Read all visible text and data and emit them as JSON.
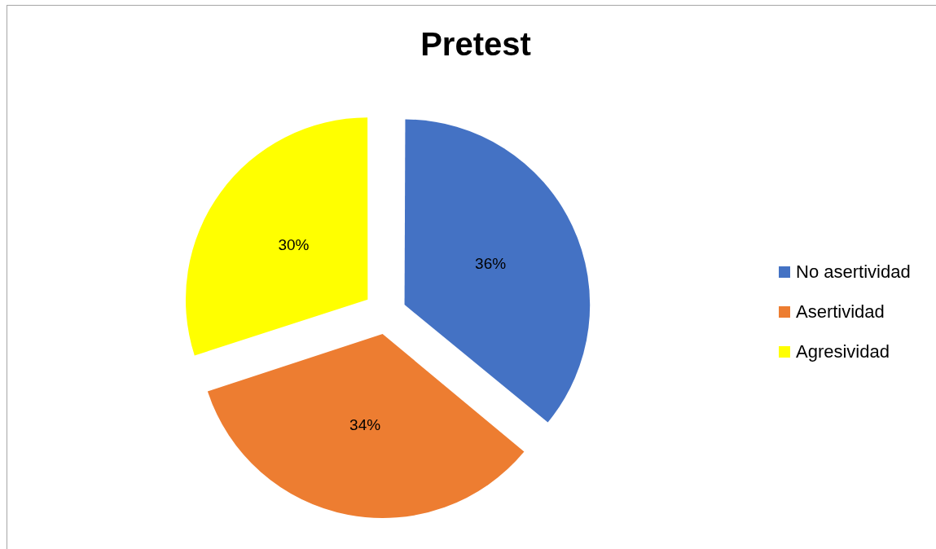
{
  "chart_data": {
    "type": "pie",
    "title": "Pretest",
    "categories": [
      "No asertividad",
      "Asertividad",
      "Agresividad"
    ],
    "values": [
      36,
      34,
      30
    ],
    "colors": [
      "#4472c4",
      "#ed7d31",
      "#ffff00"
    ],
    "value_labels": [
      "36%",
      "34%",
      "30%"
    ],
    "legend": "right"
  }
}
